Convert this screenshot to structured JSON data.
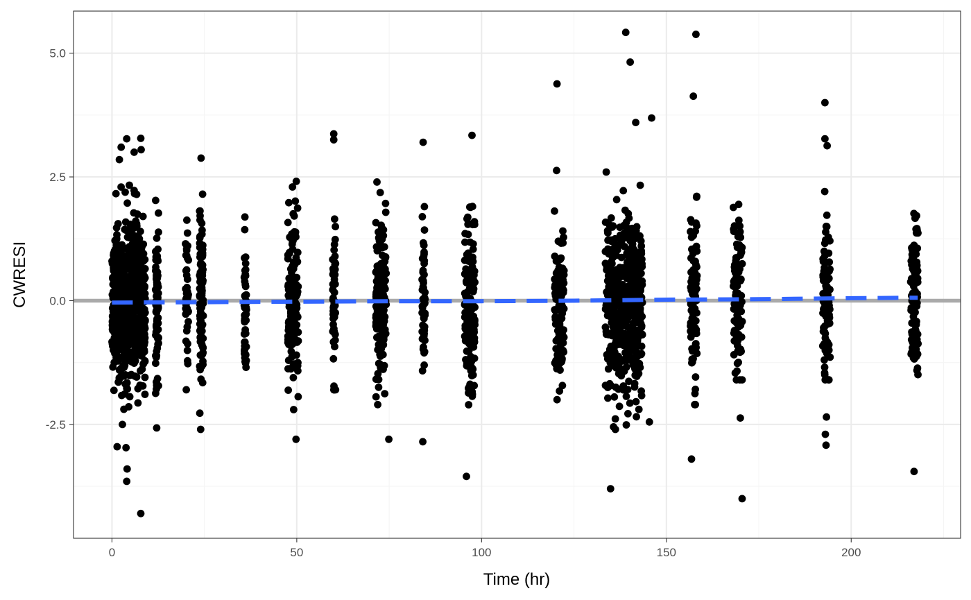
{
  "chart_data": {
    "type": "scatter",
    "title": "",
    "xlabel": "Time (hr)",
    "ylabel": "CWRESI",
    "xlim": [
      -10.4,
      229.6
    ],
    "ylim": [
      -4.8,
      5.85
    ],
    "x_ticks": [
      0,
      50,
      100,
      150,
      200
    ],
    "x_tick_labels": [
      "0",
      "50",
      "100",
      "150",
      "200"
    ],
    "y_ticks": [
      -2.5,
      0.0,
      2.5,
      5.0
    ],
    "y_tick_labels": [
      "-2.5",
      "0.0",
      "2.5",
      "5.0"
    ],
    "grid": true,
    "legend": "none",
    "colors": {
      "points": "#000000",
      "reference_line": "#aaaaaa",
      "trend_line": "#3366ff",
      "grid_major": "#ebebeb",
      "grid_minor": "#f5f5f5",
      "panel_border": "#333333"
    },
    "reference_line": {
      "y": 0
    },
    "trend_line": {
      "style": "dashed",
      "x": [
        0,
        25,
        50,
        75,
        100,
        125,
        150,
        175,
        200,
        218
      ],
      "y": [
        -0.04,
        -0.03,
        -0.02,
        -0.01,
        -0.01,
        0.0,
        0.02,
        0.03,
        0.05,
        0.06
      ]
    },
    "time_clusters": [
      {
        "x_center": 4.5,
        "x_spread": 4.5,
        "n": 650,
        "sd": 0.85,
        "clip": [
          -2.5,
          2.9
        ]
      },
      {
        "x_center": 12.2,
        "x_spread": 0.4,
        "n": 90,
        "sd": 0.8,
        "clip": [
          -2.2,
          2.6
        ]
      },
      {
        "x_center": 20.3,
        "x_spread": 0.4,
        "n": 40,
        "sd": 0.8,
        "clip": [
          -1.8,
          2.2
        ]
      },
      {
        "x_center": 24.2,
        "x_spread": 0.5,
        "n": 110,
        "sd": 0.85,
        "clip": [
          -2.3,
          2.2
        ]
      },
      {
        "x_center": 36.1,
        "x_spread": 0.3,
        "n": 50,
        "sd": 0.75,
        "clip": [
          -1.8,
          1.8
        ]
      },
      {
        "x_center": 49.0,
        "x_spread": 1.4,
        "n": 170,
        "sd": 0.85,
        "clip": [
          -2.2,
          2.5
        ]
      },
      {
        "x_center": 60.1,
        "x_spread": 0.4,
        "n": 50,
        "sd": 0.8,
        "clip": [
          -1.8,
          2.1
        ]
      },
      {
        "x_center": 72.8,
        "x_spread": 1.4,
        "n": 170,
        "sd": 0.85,
        "clip": [
          -2.1,
          2.5
        ]
      },
      {
        "x_center": 84.3,
        "x_spread": 0.4,
        "n": 50,
        "sd": 0.8,
        "clip": [
          -2.0,
          1.9
        ]
      },
      {
        "x_center": 96.8,
        "x_spread": 1.4,
        "n": 160,
        "sd": 0.85,
        "clip": [
          -2.6,
          2.5
        ]
      },
      {
        "x_center": 121.0,
        "x_spread": 1.3,
        "n": 110,
        "sd": 0.8,
        "clip": [
          -2.0,
          2.3
        ]
      },
      {
        "x_center": 138.5,
        "x_spread": 5.0,
        "n": 520,
        "sd": 0.85,
        "clip": [
          -2.6,
          3.0
        ]
      },
      {
        "x_center": 157.4,
        "x_spread": 0.9,
        "n": 90,
        "sd": 0.85,
        "clip": [
          -2.1,
          2.2
        ]
      },
      {
        "x_center": 169.3,
        "x_spread": 1.3,
        "n": 100,
        "sd": 0.8,
        "clip": [
          -1.6,
          2.3
        ]
      },
      {
        "x_center": 193.3,
        "x_spread": 1.0,
        "n": 100,
        "sd": 0.85,
        "clip": [
          -1.6,
          2.4
        ]
      },
      {
        "x_center": 217.1,
        "x_spread": 1.0,
        "n": 100,
        "sd": 0.8,
        "clip": [
          -1.7,
          2.1
        ]
      }
    ],
    "outlier_points": [
      {
        "x": 7.8,
        "y": -4.3
      },
      {
        "x": 4.0,
        "y": -3.65
      },
      {
        "x": 4.1,
        "y": -3.4
      },
      {
        "x": 1.4,
        "y": -2.95
      },
      {
        "x": 3.8,
        "y": -2.97
      },
      {
        "x": 2.0,
        "y": 2.85
      },
      {
        "x": 4.0,
        "y": 3.27
      },
      {
        "x": 7.8,
        "y": 3.28
      },
      {
        "x": 7.9,
        "y": 3.05
      },
      {
        "x": 6.0,
        "y": 3.0
      },
      {
        "x": 2.5,
        "y": 3.1
      },
      {
        "x": 12.1,
        "y": -2.57
      },
      {
        "x": 24.0,
        "y": -2.6
      },
      {
        "x": 24.1,
        "y": 2.88
      },
      {
        "x": 49.8,
        "y": -2.8
      },
      {
        "x": 60.0,
        "y": 3.37
      },
      {
        "x": 60.0,
        "y": 3.25
      },
      {
        "x": 74.9,
        "y": -2.8
      },
      {
        "x": 84.2,
        "y": 3.2
      },
      {
        "x": 84.1,
        "y": -2.85
      },
      {
        "x": 95.9,
        "y": -3.55
      },
      {
        "x": 97.4,
        "y": 3.34
      },
      {
        "x": 120.4,
        "y": 4.38
      },
      {
        "x": 120.3,
        "y": 2.63
      },
      {
        "x": 134.9,
        "y": -3.8
      },
      {
        "x": 135.7,
        "y": -2.55
      },
      {
        "x": 136.2,
        "y": -2.6
      },
      {
        "x": 139.0,
        "y": 5.42
      },
      {
        "x": 140.2,
        "y": 4.82
      },
      {
        "x": 141.7,
        "y": 3.6
      },
      {
        "x": 146.0,
        "y": 3.69
      },
      {
        "x": 145.4,
        "y": -2.45
      },
      {
        "x": 157.3,
        "y": 4.13
      },
      {
        "x": 158.0,
        "y": 5.38
      },
      {
        "x": 156.8,
        "y": -3.2
      },
      {
        "x": 170.5,
        "y": -4.0
      },
      {
        "x": 170.0,
        "y": -2.37
      },
      {
        "x": 192.9,
        "y": 4.0
      },
      {
        "x": 192.9,
        "y": 3.27
      },
      {
        "x": 193.5,
        "y": 3.13
      },
      {
        "x": 193.3,
        "y": -2.35
      },
      {
        "x": 193.0,
        "y": -2.7
      },
      {
        "x": 193.2,
        "y": -2.92
      },
      {
        "x": 217.0,
        "y": -3.45
      }
    ]
  }
}
